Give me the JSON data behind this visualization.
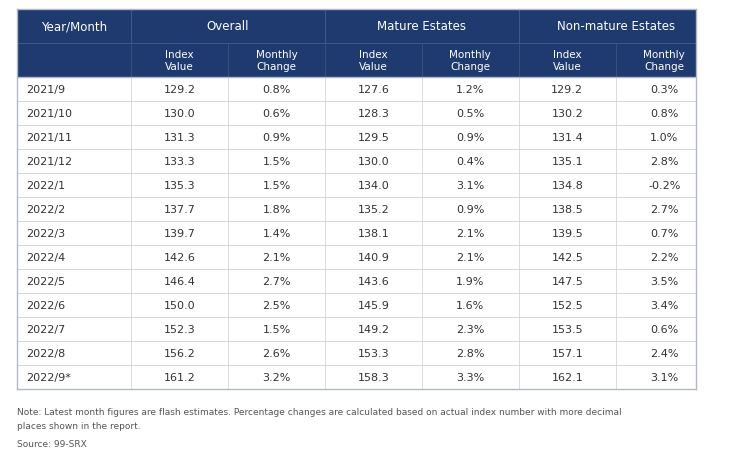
{
  "header_bg": "#1e3a6e",
  "header_text_color": "#ffffff",
  "border_color": "#b0b8c8",
  "inner_border_color": "#c8cdd8",
  "text_color": "#333333",
  "note_color": "#555555",
  "figure_bg": "#ffffff",
  "table_bg": "#ffffff",
  "col_group_labels": [
    "Year/Month",
    "Overall",
    "Mature Estates",
    "Non-mature Estates"
  ],
  "col_sub_headers": [
    "",
    "Index\nValue",
    "Monthly\nChange",
    "Index\nValue",
    "Monthly\nChange",
    "Index\nValue",
    "Monthly\nChange"
  ],
  "rows": [
    [
      "2021/9",
      "129.2",
      "0.8%",
      "127.6",
      "1.2%",
      "129.2",
      "0.3%"
    ],
    [
      "2021/10",
      "130.0",
      "0.6%",
      "128.3",
      "0.5%",
      "130.2",
      "0.8%"
    ],
    [
      "2021/11",
      "131.3",
      "0.9%",
      "129.5",
      "0.9%",
      "131.4",
      "1.0%"
    ],
    [
      "2021/12",
      "133.3",
      "1.5%",
      "130.0",
      "0.4%",
      "135.1",
      "2.8%"
    ],
    [
      "2022/1",
      "135.3",
      "1.5%",
      "134.0",
      "3.1%",
      "134.8",
      "-0.2%"
    ],
    [
      "2022/2",
      "137.7",
      "1.8%",
      "135.2",
      "0.9%",
      "138.5",
      "2.7%"
    ],
    [
      "2022/3",
      "139.7",
      "1.4%",
      "138.1",
      "2.1%",
      "139.5",
      "0.7%"
    ],
    [
      "2022/4",
      "142.6",
      "2.1%",
      "140.9",
      "2.1%",
      "142.5",
      "2.2%"
    ],
    [
      "2022/5",
      "146.4",
      "2.7%",
      "143.6",
      "1.9%",
      "147.5",
      "3.5%"
    ],
    [
      "2022/6",
      "150.0",
      "2.5%",
      "145.9",
      "1.6%",
      "152.5",
      "3.4%"
    ],
    [
      "2022/7",
      "152.3",
      "1.5%",
      "149.2",
      "2.3%",
      "153.5",
      "0.6%"
    ],
    [
      "2022/8",
      "156.2",
      "2.6%",
      "153.3",
      "2.8%",
      "157.1",
      "2.4%"
    ],
    [
      "2022/9*",
      "161.2",
      "3.2%",
      "158.3",
      "3.3%",
      "162.1",
      "3.1%"
    ]
  ],
  "note_line1": "Note: Latest month figures are flash estimates. Percentage changes are calculated based on actual index number with more decimal",
  "note_line2": "places shown in the report.",
  "source": "Source: 99-SRX"
}
